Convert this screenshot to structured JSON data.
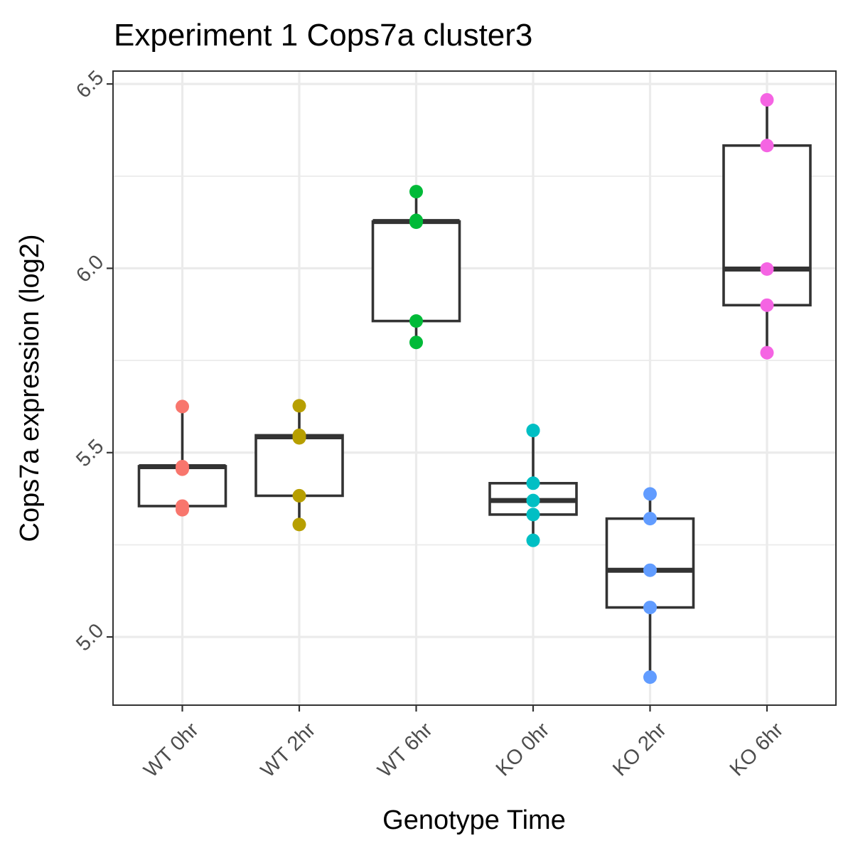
{
  "chart_data": {
    "type": "box",
    "title": "Experiment 1 Cops7a cluster3",
    "xlabel": "Genotype Time",
    "ylabel": "Cops7a expression (log2)",
    "ylim": [
      4.815,
      6.535
    ],
    "yticks": [
      5.0,
      5.5,
      6.0,
      6.5
    ],
    "ytick_labels": [
      "5.0",
      "5.5",
      "6.0",
      "6.5"
    ],
    "grid": true,
    "categories": [
      "WT 0hr",
      "WT 2hr",
      "WT 6hr",
      "KO 0hr",
      "KO 2hr",
      "KO 6hr"
    ],
    "colors": [
      "#F8766D",
      "#B79F00",
      "#00BA38",
      "#00BFC4",
      "#619CFF",
      "#F564E3"
    ],
    "boxes": [
      {
        "q1": 5.355,
        "median": 5.462,
        "q3": 5.463,
        "whisker_low": 5.345,
        "whisker_high": 5.625
      },
      {
        "q1": 5.383,
        "median": 5.543,
        "q3": 5.547,
        "whisker_low": 5.305,
        "whisker_high": 5.627
      },
      {
        "q1": 5.857,
        "median": 6.127,
        "q3": 6.127,
        "whisker_low": 5.799,
        "whisker_high": 6.208
      },
      {
        "q1": 5.332,
        "median": 5.37,
        "q3": 5.417,
        "whisker_low": 5.262,
        "whisker_high": 5.56
      },
      {
        "q1": 5.08,
        "median": 5.181,
        "q3": 5.321,
        "whisker_low": 4.891,
        "whisker_high": 5.388
      },
      {
        "q1": 5.9,
        "median": 5.998,
        "q3": 6.333,
        "whisker_low": 5.771,
        "whisker_high": 6.457
      }
    ],
    "points": [
      [
        5.625,
        5.462,
        5.455,
        5.355,
        5.345
      ],
      [
        5.627,
        5.547,
        5.54,
        5.383,
        5.305
      ],
      [
        6.208,
        6.13,
        6.125,
        5.857,
        5.799
      ],
      [
        5.56,
        5.56,
        5.417,
        5.37,
        5.332,
        5.262
      ],
      [
        5.388,
        5.321,
        5.181,
        5.08,
        4.891
      ],
      [
        6.457,
        6.333,
        5.998,
        5.9,
        5.771
      ]
    ]
  }
}
